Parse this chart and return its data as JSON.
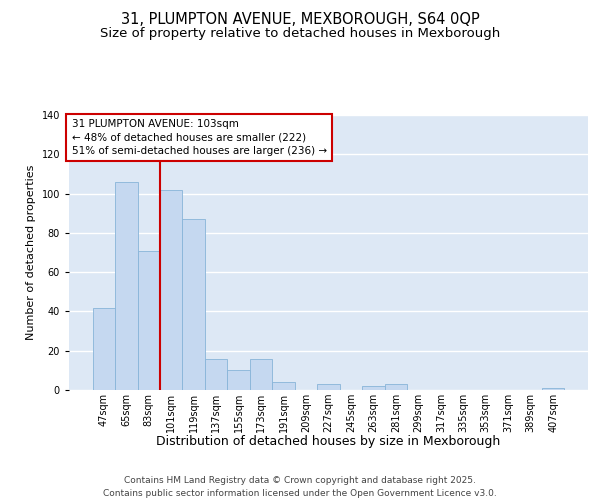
{
  "title_line1": "31, PLUMPTON AVENUE, MEXBOROUGH, S64 0QP",
  "title_line2": "Size of property relative to detached houses in Mexborough",
  "xlabel": "Distribution of detached houses by size in Mexborough",
  "ylabel": "Number of detached properties",
  "categories": [
    "47sqm",
    "65sqm",
    "83sqm",
    "101sqm",
    "119sqm",
    "137sqm",
    "155sqm",
    "173sqm",
    "191sqm",
    "209sqm",
    "227sqm",
    "245sqm",
    "263sqm",
    "281sqm",
    "299sqm",
    "317sqm",
    "335sqm",
    "353sqm",
    "371sqm",
    "389sqm",
    "407sqm"
  ],
  "values": [
    42,
    106,
    71,
    102,
    87,
    16,
    10,
    16,
    4,
    0,
    3,
    0,
    2,
    3,
    0,
    0,
    0,
    0,
    0,
    0,
    1
  ],
  "bar_color": "#c5d8f0",
  "bar_edge_color": "#88b4d8",
  "plot_bg_color": "#dde8f5",
  "fig_bg_color": "#ffffff",
  "grid_color": "#ffffff",
  "vline_color": "#cc0000",
  "vline_x_index": 3,
  "annotation_text": "31 PLUMPTON AVENUE: 103sqm\n← 48% of detached houses are smaller (222)\n51% of semi-detached houses are larger (236) →",
  "annotation_box_color": "#ffffff",
  "annotation_edge_color": "#cc0000",
  "ylim": [
    0,
    140
  ],
  "yticks": [
    0,
    20,
    40,
    60,
    80,
    100,
    120,
    140
  ],
  "footer_text": "Contains HM Land Registry data © Crown copyright and database right 2025.\nContains public sector information licensed under the Open Government Licence v3.0.",
  "title_fontsize": 10.5,
  "subtitle_fontsize": 9.5,
  "xlabel_fontsize": 9,
  "ylabel_fontsize": 8,
  "tick_fontsize": 7,
  "annotation_fontsize": 7.5,
  "footer_fontsize": 6.5
}
